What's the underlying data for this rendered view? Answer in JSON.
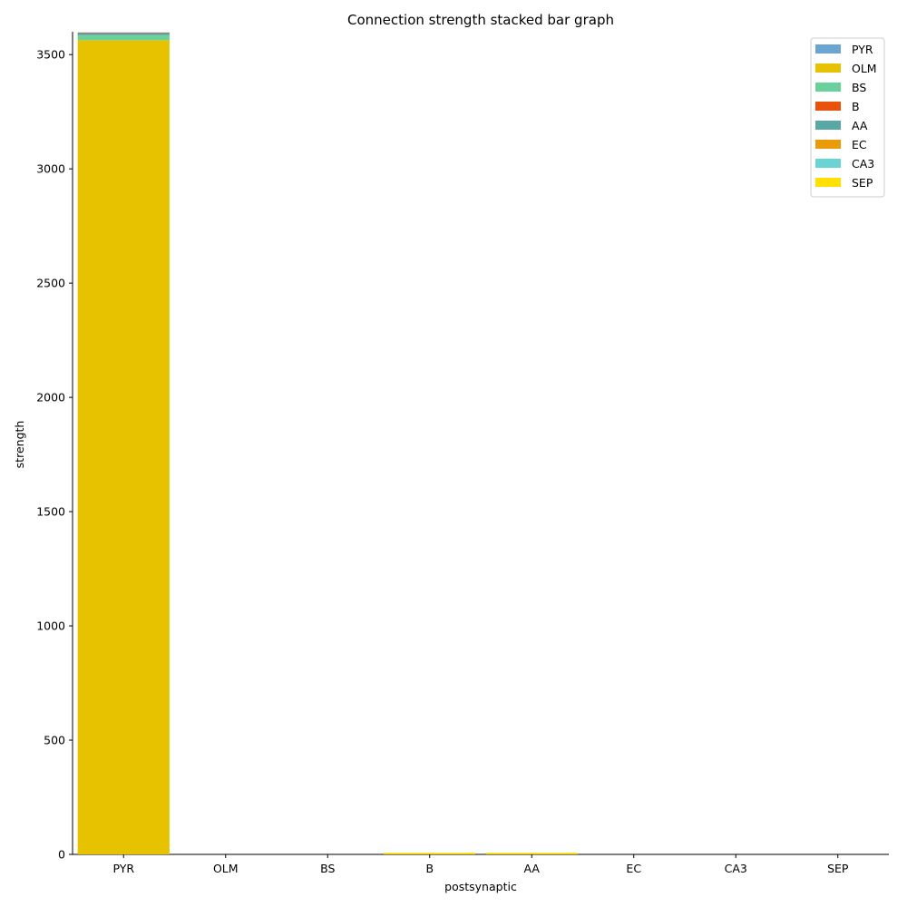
{
  "chart_data": {
    "type": "bar",
    "stacked": true,
    "title": "Connection strength stacked bar graph",
    "xlabel": "postsynaptic",
    "ylabel": "strength",
    "ylim": [
      0,
      3600
    ],
    "yticks": [
      0,
      500,
      1000,
      1500,
      2000,
      2500,
      3000,
      3500
    ],
    "categories": [
      "PYR",
      "OLM",
      "BS",
      "B",
      "AA",
      "EC",
      "CA3",
      "SEP"
    ],
    "legend_position": "top-right",
    "grid": false,
    "series": [
      {
        "name": "PYR",
        "color": "#6aa6d1",
        "values": [
          0,
          0,
          0,
          0,
          0,
          0,
          0,
          0
        ]
      },
      {
        "name": "OLM",
        "color": "#e6c200",
        "values": [
          3563,
          0,
          0,
          3,
          3,
          0,
          0,
          0
        ]
      },
      {
        "name": "BS",
        "color": "#69d19a",
        "values": [
          22,
          0,
          0,
          0,
          0,
          0,
          0,
          0
        ]
      },
      {
        "name": "B",
        "color": "#e8520a",
        "values": [
          0,
          0,
          0,
          0,
          0,
          0,
          0,
          0
        ]
      },
      {
        "name": "AA",
        "color": "#5aa8a6",
        "values": [
          8,
          0,
          0,
          0,
          0,
          0,
          0,
          0
        ]
      },
      {
        "name": "EC",
        "color": "#ea9b0a",
        "values": [
          0,
          0,
          0,
          0,
          0,
          0,
          0,
          0
        ]
      },
      {
        "name": "CA3",
        "color": "#6ad4d4",
        "values": [
          0,
          0,
          0,
          0,
          0,
          0,
          0,
          0
        ]
      },
      {
        "name": "SEP",
        "color": "#ffe000",
        "values": [
          0,
          0,
          0,
          1,
          1,
          0,
          0,
          0
        ]
      }
    ],
    "top_edge_color": "#8a8a8a"
  }
}
